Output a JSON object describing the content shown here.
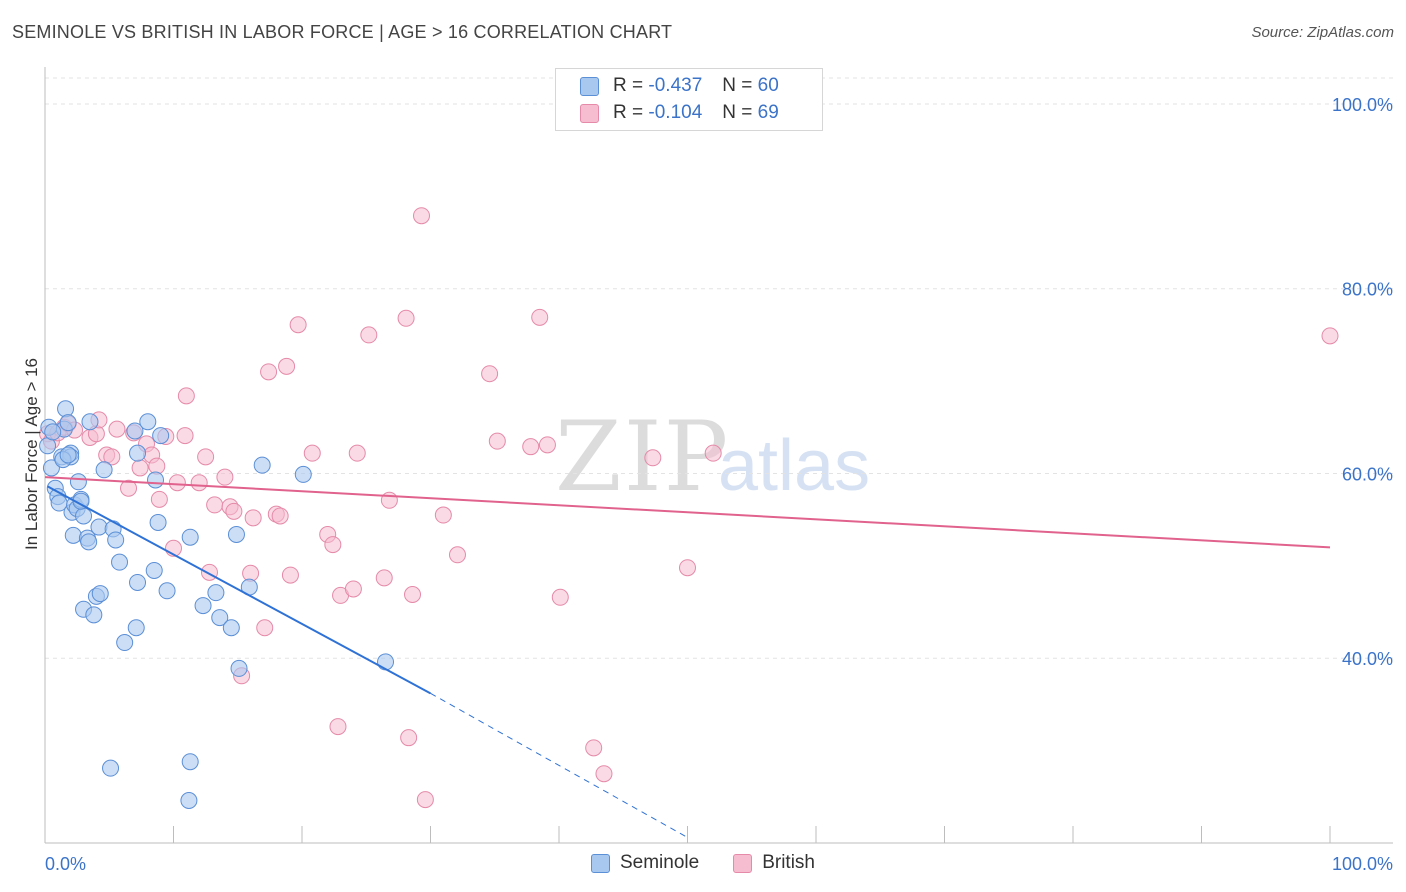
{
  "title": "SEMINOLE VS BRITISH IN LABOR FORCE | AGE > 16 CORRELATION CHART",
  "source": "Source: ZipAtlas.com",
  "watermark": {
    "zip": "ZIP",
    "atlas": "atlas"
  },
  "colors": {
    "seminole_fill": "#a9c8f0",
    "seminole_stroke": "#5b8fd6",
    "seminole_line": "#2f72d6",
    "british_fill": "#f6bcd0",
    "british_stroke": "#e58aa9",
    "british_line": "#e0628d",
    "axis_text": "#3b73c9",
    "grid": "#e3e3e3"
  },
  "legend": {
    "seminole": {
      "r_label": "R = ",
      "r_value": "-0.437",
      "n_label": "N = ",
      "n_value": "60"
    },
    "british": {
      "r_label": "R = ",
      "r_value": "-0.104",
      "n_label": "N = ",
      "n_value": "69"
    }
  },
  "chart_data": {
    "type": "scatter",
    "title": "SEMINOLE VS BRITISH IN LABOR FORCE | AGE > 16 CORRELATION CHART",
    "xlabel": "",
    "ylabel": "In Labor Force | Age > 16",
    "xlim": [
      0,
      100
    ],
    "ylim": [
      20,
      104
    ],
    "x_tick_labels": [
      "0.0%",
      "100.0%"
    ],
    "y_ticks": [
      40,
      60,
      80,
      100
    ],
    "y_tick_labels": [
      "40.0%",
      "60.0%",
      "80.0%",
      "100.0%"
    ],
    "grid": true,
    "legend_position": "top-center",
    "series": [
      {
        "name": "Seminole",
        "trend": {
          "x0": 0.2,
          "y0": 58.6,
          "x1": 30,
          "y1": 36.2,
          "dashed_to_x": 50,
          "dashed_to_y": 20.6
        },
        "points": [
          [
            0.3,
            65
          ],
          [
            0.5,
            60.6
          ],
          [
            0.8,
            58.4
          ],
          [
            1.0,
            57.5
          ],
          [
            1.1,
            56.8
          ],
          [
            1.3,
            61.8
          ],
          [
            1.5,
            64.8
          ],
          [
            1.6,
            67
          ],
          [
            1.8,
            65.5
          ],
          [
            2.0,
            62.2
          ],
          [
            2.0,
            61.8
          ],
          [
            2.1,
            55.8
          ],
          [
            2.2,
            53.3
          ],
          [
            2.3,
            56.6
          ],
          [
            2.5,
            56.2
          ],
          [
            2.6,
            59.1
          ],
          [
            2.8,
            57.2
          ],
          [
            3.0,
            55.4
          ],
          [
            3.0,
            45.3
          ],
          [
            3.3,
            53
          ],
          [
            3.4,
            52.6
          ],
          [
            3.5,
            65.6
          ],
          [
            3.8,
            44.7
          ],
          [
            4.0,
            46.7
          ],
          [
            4.3,
            47
          ],
          [
            4.2,
            54.2
          ],
          [
            4.6,
            60.4
          ],
          [
            5.1,
            28.1
          ],
          [
            5.3,
            54
          ],
          [
            5.5,
            52.8
          ],
          [
            5.8,
            50.4
          ],
          [
            6.2,
            41.7
          ],
          [
            7.1,
            43.3
          ],
          [
            7.2,
            48.2
          ],
          [
            7.2,
            62.2
          ],
          [
            7.0,
            64.6
          ],
          [
            8.0,
            65.6
          ],
          [
            8.5,
            49.5
          ],
          [
            8.6,
            59.3
          ],
          [
            8.8,
            54.7
          ],
          [
            9.0,
            64.1
          ],
          [
            9.5,
            47.3
          ],
          [
            11.3,
            28.8
          ],
          [
            11.2,
            24.6
          ],
          [
            11.3,
            53.1
          ],
          [
            12.3,
            45.7
          ],
          [
            13.3,
            47.1
          ],
          [
            13.6,
            44.4
          ],
          [
            14.5,
            43.3
          ],
          [
            14.9,
            53.4
          ],
          [
            15.1,
            38.9
          ],
          [
            15.9,
            47.7
          ],
          [
            16.9,
            60.9
          ],
          [
            20.1,
            59.9
          ],
          [
            26.5,
            39.6
          ],
          [
            0.2,
            63
          ],
          [
            1.4,
            61.5
          ],
          [
            2.8,
            57.0
          ],
          [
            0.6,
            64.5
          ],
          [
            1.8,
            62.0
          ]
        ]
      },
      {
        "name": "British",
        "trend": {
          "x0": 0,
          "y0": 59.6,
          "x1": 100,
          "y1": 52.0
        },
        "points": [
          [
            0.2,
            64.3
          ],
          [
            0.5,
            63.5
          ],
          [
            1.0,
            64.4
          ],
          [
            1.5,
            65.0
          ],
          [
            1.8,
            65.4
          ],
          [
            2.3,
            64.7
          ],
          [
            3.5,
            63.9
          ],
          [
            4.0,
            64.3
          ],
          [
            4.2,
            65.8
          ],
          [
            4.8,
            62.0
          ],
          [
            5.2,
            61.8
          ],
          [
            5.6,
            64.8
          ],
          [
            6.5,
            58.4
          ],
          [
            6.9,
            64.4
          ],
          [
            7.4,
            60.6
          ],
          [
            7.9,
            63.2
          ],
          [
            8.3,
            62.0
          ],
          [
            8.7,
            60.8
          ],
          [
            8.9,
            57.2
          ],
          [
            9.4,
            64.0
          ],
          [
            10.0,
            51.9
          ],
          [
            10.3,
            59.0
          ],
          [
            10.9,
            64.1
          ],
          [
            11.0,
            68.4
          ],
          [
            12.0,
            59.0
          ],
          [
            12.5,
            61.8
          ],
          [
            12.8,
            49.3
          ],
          [
            13.2,
            56.6
          ],
          [
            14.0,
            59.6
          ],
          [
            14.4,
            56.4
          ],
          [
            14.7,
            55.9
          ],
          [
            15.3,
            38.1
          ],
          [
            16.0,
            49.2
          ],
          [
            16.2,
            55.2
          ],
          [
            17.1,
            43.3
          ],
          [
            17.4,
            71.0
          ],
          [
            18.0,
            55.6
          ],
          [
            18.3,
            55.4
          ],
          [
            18.8,
            71.6
          ],
          [
            19.1,
            49.0
          ],
          [
            19.7,
            76.1
          ],
          [
            20.8,
            62.2
          ],
          [
            22.0,
            53.4
          ],
          [
            22.4,
            52.3
          ],
          [
            22.8,
            32.6
          ],
          [
            23.0,
            46.8
          ],
          [
            24.0,
            47.5
          ],
          [
            24.3,
            62.2
          ],
          [
            25.2,
            75.0
          ],
          [
            26.4,
            48.7
          ],
          [
            26.8,
            57.1
          ],
          [
            28.1,
            76.8
          ],
          [
            28.3,
            31.4
          ],
          [
            28.6,
            46.9
          ],
          [
            29.3,
            87.9
          ],
          [
            29.6,
            24.7
          ],
          [
            31.0,
            55.5
          ],
          [
            32.1,
            51.2
          ],
          [
            34.6,
            70.8
          ],
          [
            35.2,
            63.5
          ],
          [
            37.8,
            62.9
          ],
          [
            38.5,
            76.9
          ],
          [
            39.1,
            63.1
          ],
          [
            40.1,
            46.6
          ],
          [
            42.7,
            30.3
          ],
          [
            43.5,
            27.5
          ],
          [
            47.3,
            61.7
          ],
          [
            50.0,
            49.8
          ],
          [
            52.0,
            62.2
          ]
        ],
        "outlier": [
          100.0,
          74.9
        ]
      }
    ]
  },
  "axis": {
    "y_label": "In Labor Force | Age > 16",
    "x_min_label": "0.0%",
    "x_max_label": "100.0%"
  },
  "bottom_legend": {
    "seminole": "Seminole",
    "british": "British"
  }
}
